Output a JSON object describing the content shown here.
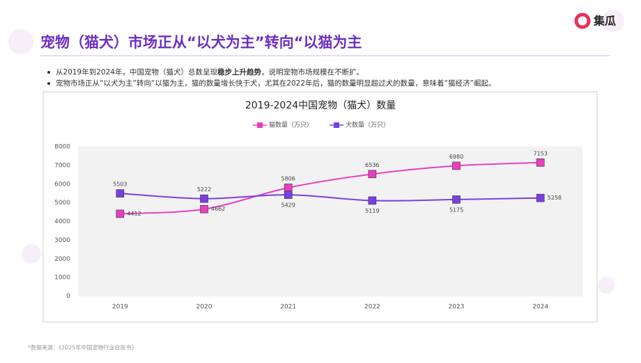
{
  "logo": "集瓜",
  "header": {
    "title": "宠物（猫犬）市场正从“以犬为主”转向“以猫为主"
  },
  "bullets": [
    [
      "从2019年到2024年，中国宠物（猫犬）总数呈现",
      "稳步上升趋势",
      "，说明宠物市场规模在不断扩。"
    ],
    [
      "宠物市场正从“以犬为主”转向“以猫为主，猫的数量增长快于犬，尤其在2022年后，猫的数量明显超过犬的数量，意味着“猫经济”崛起。"
    ]
  ],
  "chart_data": {
    "type": "line",
    "title": "2019-2024中国宠物（猫犬）数量",
    "categories": [
      "2019",
      "2020",
      "2021",
      "2022",
      "2023",
      "2024"
    ],
    "series": [
      {
        "name": "猫数量（万只）",
        "color": "#e83fc0",
        "values": [
          4412,
          4662,
          5806,
          6536,
          6980,
          7153
        ]
      },
      {
        "name": "犬数量（万只）",
        "color": "#7b3fe0",
        "values": [
          5503,
          5222,
          5429,
          5119,
          5175,
          5258
        ]
      }
    ],
    "ylim": [
      0,
      8000
    ],
    "yticks": [
      0,
      1000,
      2000,
      3000,
      4000,
      5000,
      6000,
      7000,
      8000
    ],
    "legend": "top"
  },
  "source": "*数据来源：《2025年中国宠物行业白皮书》"
}
